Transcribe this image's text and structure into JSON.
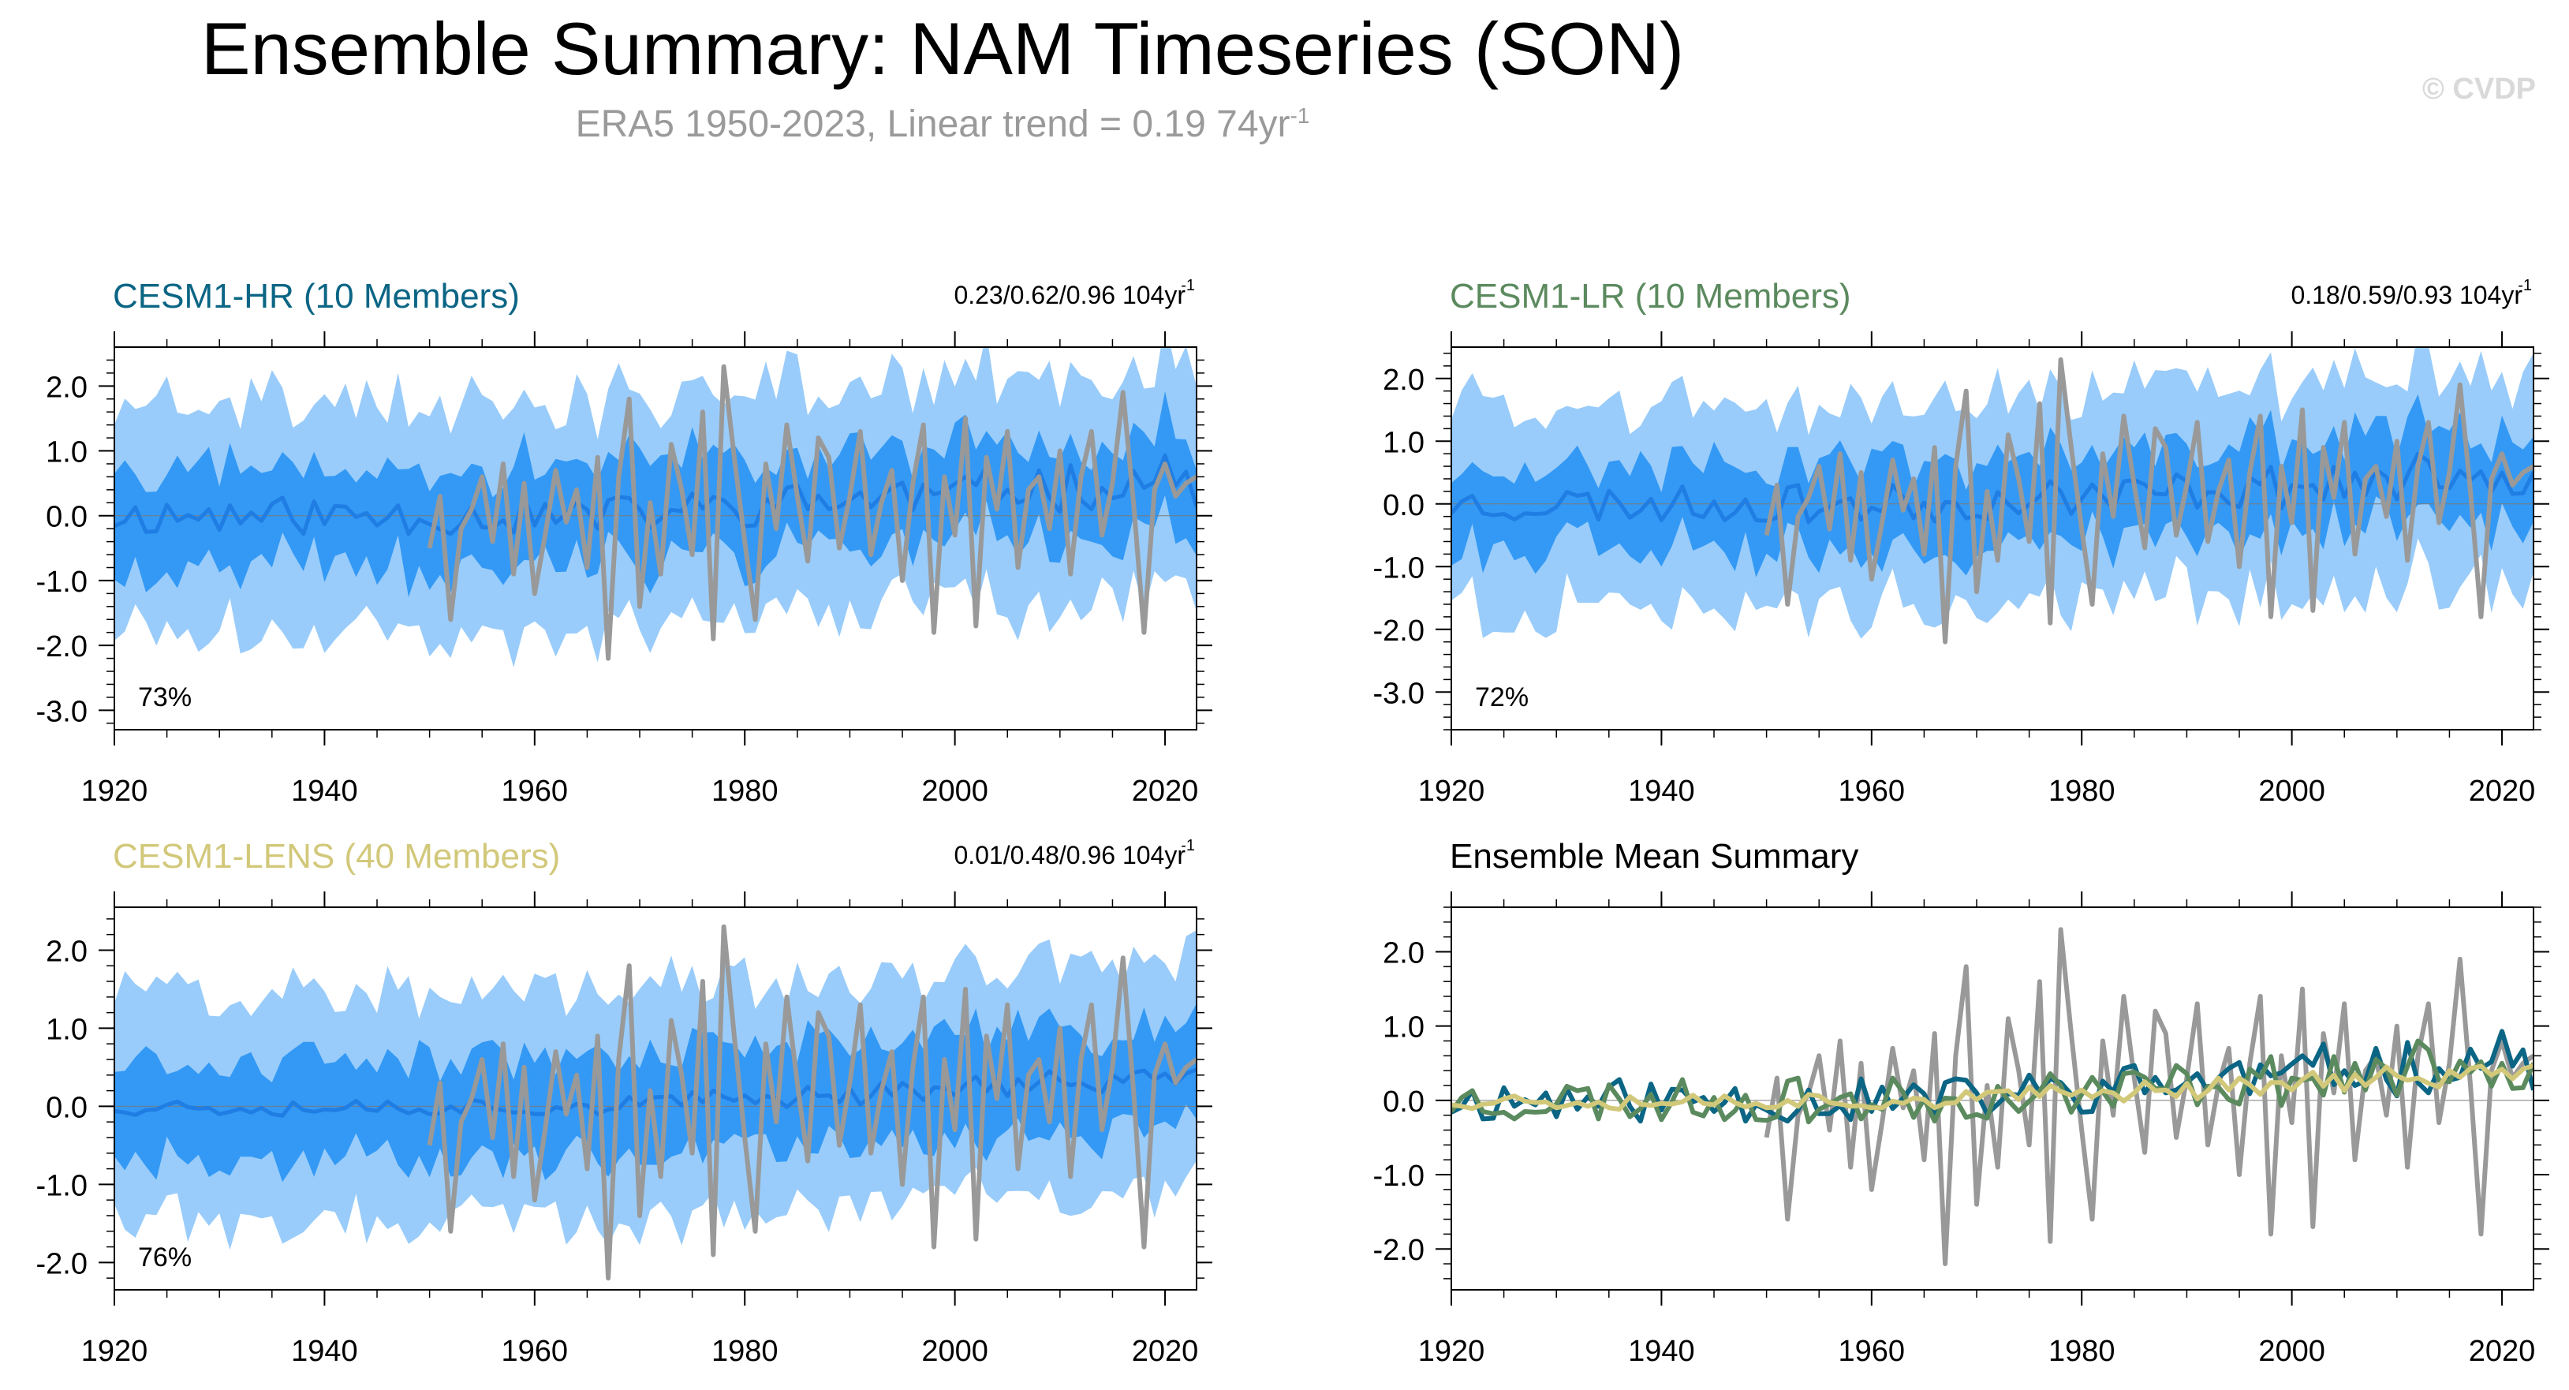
{
  "title": "Ensemble Summary: NAM Timeseries (SON)",
  "subtitle_main": "ERA5 1950-2023, Linear trend = 0.19 74yr",
  "subtitle_exp": "-1",
  "watermark": "© CVDP",
  "colors": {
    "band_outer": "#99ccfa",
    "band_inner": "#3399f5",
    "mean_line": "#1f7de3",
    "obs": "#999999",
    "hr": "#0b6584",
    "lr": "#5b8a5e",
    "lens": "#d2c87a"
  },
  "chart_data": [
    {
      "id": "hr",
      "type": "area",
      "title": "CESM1-HR (10 Members)",
      "title_color": "#0b6584",
      "stats": "0.23/0.62/0.96 104yr",
      "stats_exp": "-1",
      "percent": "73%",
      "xlim": [
        1920,
        2023
      ],
      "ylim": [
        -3.3,
        2.6
      ],
      "yticks": [
        2.0,
        1.0,
        0.0,
        -1.0,
        -2.0,
        -3.0
      ],
      "ytick_labels": [
        "2.0",
        "1.0",
        "0.0",
        "-1.0",
        "-2.0",
        "-3.0"
      ],
      "xticks": [
        1920,
        1940,
        1960,
        1980,
        2000,
        2020
      ],
      "xtick_labels": [
        "1920",
        "1940",
        "1960",
        "1980",
        "2000",
        "2020"
      ],
      "outer_half_width": 1.7,
      "inner_half_width": 0.75,
      "mean_amplitude": 0.3,
      "mean_trend_end": 0.6,
      "seed": 11,
      "has_obs": true
    },
    {
      "id": "lr",
      "type": "area",
      "title": "CESM1-LR (10 Members)",
      "title_color": "#5b8a5e",
      "stats": "0.18/0.59/0.93 104yr",
      "stats_exp": "-1",
      "percent": "72%",
      "xlim": [
        1920,
        2023
      ],
      "ylim": [
        -3.6,
        2.5
      ],
      "yticks": [
        2.0,
        1.0,
        0.0,
        -1.0,
        -2.0,
        -3.0
      ],
      "ytick_labels": [
        "2.0",
        "1.0",
        "0.0",
        "-1.0",
        "-2.0",
        "-3.0"
      ],
      "xticks": [
        1920,
        1940,
        1960,
        1980,
        2000,
        2020
      ],
      "xtick_labels": [
        "1920",
        "1940",
        "1960",
        "1980",
        "2000",
        "2020"
      ],
      "outer_half_width": 1.6,
      "inner_half_width": 0.7,
      "mean_amplitude": 0.3,
      "mean_trend_end": 0.5,
      "seed": 23,
      "has_obs": true
    },
    {
      "id": "lens",
      "type": "area",
      "title": "CESM1-LENS (40 Members)",
      "title_color": "#d2c87a",
      "stats": "0.01/0.48/0.96 104yr",
      "stats_exp": "-1",
      "percent": "76%",
      "xlim": [
        1920,
        2023
      ],
      "ylim": [
        -2.35,
        2.55
      ],
      "yticks": [
        2.0,
        1.0,
        0.0,
        -1.0,
        -2.0
      ],
      "ytick_labels": [
        "2.0",
        "1.0",
        "0.0",
        "-1.0",
        "-2.0"
      ],
      "xticks": [
        1920,
        1940,
        1960,
        1980,
        2000,
        2020
      ],
      "xtick_labels": [
        "1920",
        "1940",
        "1960",
        "1980",
        "2000",
        "2020"
      ],
      "outer_half_width": 1.45,
      "inner_half_width": 0.65,
      "mean_amplitude": 0.12,
      "mean_trend_end": 0.4,
      "seed": 37,
      "has_obs": true
    },
    {
      "id": "summary",
      "type": "line",
      "title": "Ensemble Mean Summary",
      "title_color": "#000000",
      "xlim": [
        1920,
        2023
      ],
      "ylim": [
        -2.55,
        2.6
      ],
      "yticks": [
        2.0,
        1.0,
        0.0,
        -1.0,
        -2.0
      ],
      "ytick_labels": [
        "2.0",
        "1.0",
        "0.0",
        "-1.0",
        "-2.0"
      ],
      "xticks": [
        1920,
        1940,
        1960,
        1980,
        2000,
        2020
      ],
      "xtick_labels": [
        "1920",
        "1940",
        "1960",
        "1980",
        "2000",
        "2020"
      ],
      "series": [
        {
          "name": "CESM1-HR",
          "color": "#0b6584",
          "seed": 11,
          "amplitude": 0.3,
          "trend_end": 0.6
        },
        {
          "name": "CESM1-LR",
          "color": "#5b8a5e",
          "seed": 23,
          "amplitude": 0.3,
          "trend_end": 0.5
        },
        {
          "name": "CESM1-LENS",
          "color": "#d2c87a",
          "seed": 37,
          "amplitude": 0.12,
          "trend_end": 0.4
        }
      ],
      "has_obs": true
    }
  ],
  "obs_series": {
    "name": "ERA5",
    "years": [
      1950,
      1951,
      1952,
      1953,
      1954,
      1955,
      1956,
      1957,
      1958,
      1959,
      1960,
      1961,
      1962,
      1963,
      1964,
      1965,
      1966,
      1967,
      1968,
      1969,
      1970,
      1971,
      1972,
      1973,
      1974,
      1975,
      1976,
      1977,
      1978,
      1979,
      1980,
      1981,
      1982,
      1983,
      1984,
      1985,
      1986,
      1987,
      1988,
      1989,
      1990,
      1991,
      1992,
      1993,
      1994,
      1995,
      1996,
      1997,
      1998,
      1999,
      2000,
      2001,
      2002,
      2003,
      2004,
      2005,
      2006,
      2007,
      2008,
      2009,
      2010,
      2011,
      2012,
      2013,
      2014,
      2015,
      2016,
      2017,
      2018,
      2019,
      2020,
      2021,
      2022,
      2023
    ],
    "values": [
      -0.5,
      0.3,
      -1.6,
      -0.2,
      0.1,
      0.6,
      -0.4,
      0.8,
      -0.9,
      0.5,
      -1.2,
      -0.3,
      0.7,
      -0.1,
      0.4,
      -0.8,
      0.9,
      -2.2,
      0.6,
      1.8,
      -1.4,
      0.2,
      -0.9,
      1.1,
      0.4,
      -0.6,
      1.6,
      -1.9,
      2.3,
      0.9,
      -0.4,
      -1.6,
      0.8,
      -0.2,
      1.4,
      0.3,
      -0.7,
      1.2,
      0.9,
      -0.5,
      0.3,
      1.3,
      -0.6,
      0.2,
      0.7,
      -1.0,
      0.5,
      1.4,
      -1.8,
      0.6,
      -0.3,
      1.5,
      -1.7,
      0.9,
      0.1,
      1.3,
      -0.8,
      0.4,
      0.6,
      -0.2,
      1.0,
      -0.9,
      0.6,
      1.3,
      -0.3,
      0.5,
      1.9,
      0.2,
      -1.8,
      0.4,
      0.8,
      0.3,
      0.5,
      0.6
    ]
  }
}
